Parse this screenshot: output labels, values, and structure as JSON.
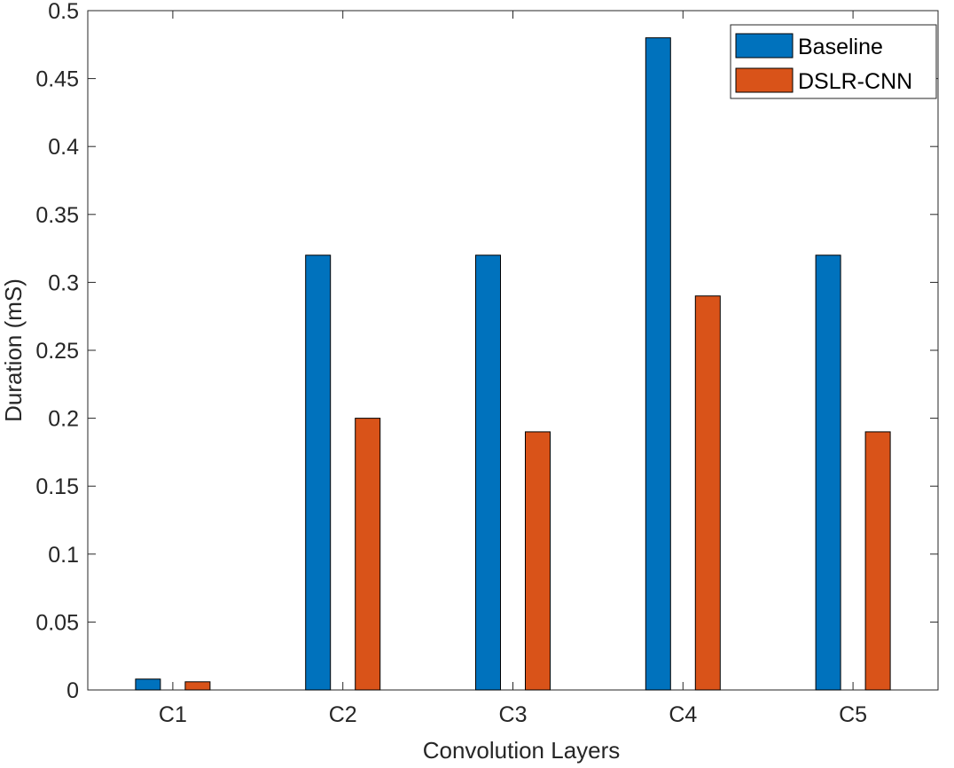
{
  "colors": {
    "baseline": "#0072BD",
    "dslr": "#D95319",
    "axis": "#262626",
    "bar_edge": "#000000"
  },
  "chart_data": {
    "type": "bar",
    "title": "",
    "xlabel": "Convolution Layers",
    "ylabel": "Duration (mS)",
    "categories": [
      "C1",
      "C2",
      "C3",
      "C4",
      "C5"
    ],
    "ylim": [
      0,
      0.5
    ],
    "yticks": [
      "0",
      "0.05",
      "0.1",
      "0.15",
      "0.2",
      "0.25",
      "0.3",
      "0.35",
      "0.4",
      "0.45",
      "0.5"
    ],
    "ytick_values": [
      0,
      0.05,
      0.1,
      0.15,
      0.2,
      0.25,
      0.3,
      0.35,
      0.4,
      0.45,
      0.5
    ],
    "grid": false,
    "legend_position": "top-right",
    "series": [
      {
        "name": "Baseline",
        "values": [
          0.008,
          0.32,
          0.32,
          0.48,
          0.32
        ]
      },
      {
        "name": "DSLR-CNN",
        "values": [
          0.006,
          0.2,
          0.19,
          0.29,
          0.19
        ]
      }
    ]
  }
}
